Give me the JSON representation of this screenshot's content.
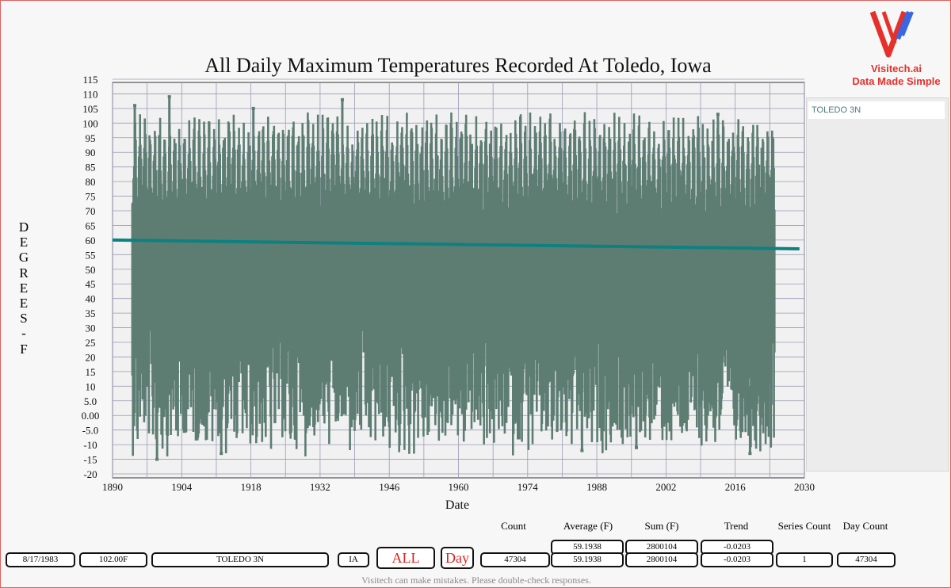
{
  "brand": {
    "name": "Visitech.ai",
    "tagline": "Data Made Simple"
  },
  "legend": {
    "items": [
      "TOLEDO 3N"
    ]
  },
  "chart_data": {
    "type": "line",
    "title": "All Daily Maximum Temperatures Recorded At Toledo, Iowa",
    "xlabel": "Date",
    "ylabel": [
      "D",
      "E",
      "G",
      "R",
      "E",
      "E",
      "S",
      "-",
      "F"
    ],
    "xlim": [
      1890,
      2030
    ],
    "ylim": [
      -20,
      115
    ],
    "x_ticks": [
      "1890",
      "1904",
      "1918",
      "1932",
      "1946",
      "1960",
      "1974",
      "1988",
      "2002",
      "2016",
      "2030"
    ],
    "y_ticks": [
      "115",
      "110",
      "105",
      "100",
      "95",
      "90",
      "85",
      "80",
      "75",
      "70",
      "65",
      "60",
      "55",
      "50",
      "45",
      "40",
      "35",
      "30",
      "25",
      "20",
      "15",
      "10",
      "5.0",
      "0.00",
      "-5.0",
      "-10",
      "-15",
      "-20"
    ],
    "grid": true,
    "series": [
      {
        "name": "TOLEDO 3N",
        "color": "#5d7d73",
        "data_range_years": [
          1894,
          2024
        ],
        "notable_max_peaks": [
          {
            "x": 1894.5,
            "y": 106
          },
          {
            "x": 1901.5,
            "y": 109
          },
          {
            "x": 1918.5,
            "y": 105
          },
          {
            "x": 1936.5,
            "y": 108
          },
          {
            "x": 2012.5,
            "y": 103
          }
        ],
        "notable_min_troughs": [
          {
            "x": 1899,
            "y": -15
          },
          {
            "x": 1912,
            "y": -13
          },
          {
            "x": 1985,
            "y": -12
          },
          {
            "x": 1996,
            "y": -11
          },
          {
            "x": 2019,
            "y": -13
          }
        ]
      }
    ],
    "trend_line": {
      "color": "#0e8080",
      "points": [
        {
          "x": 1890,
          "y": 60.0
        },
        {
          "x": 2029,
          "y": 57.0
        }
      ]
    }
  },
  "stats": {
    "headers": [
      "Count",
      "Average (F)",
      "Sum (F)",
      "Trend",
      "Series Count",
      "Day Count"
    ],
    "top_values": {
      "average": "59.1938",
      "sum": "2800104",
      "trend": "-0.0203"
    },
    "row": {
      "date": "8/17/1983",
      "temp": "102.00F",
      "station": "TOLEDO 3N",
      "state": "IA",
      "all_btn": "ALL",
      "day_btn": "Day",
      "count": "47304",
      "average": "59.1938",
      "sum": "2800104",
      "trend": "-0.0203",
      "series_count": "1",
      "day_count": "47304"
    }
  },
  "disclaimer": "Visitech can make mistakes. Please double-check responses."
}
